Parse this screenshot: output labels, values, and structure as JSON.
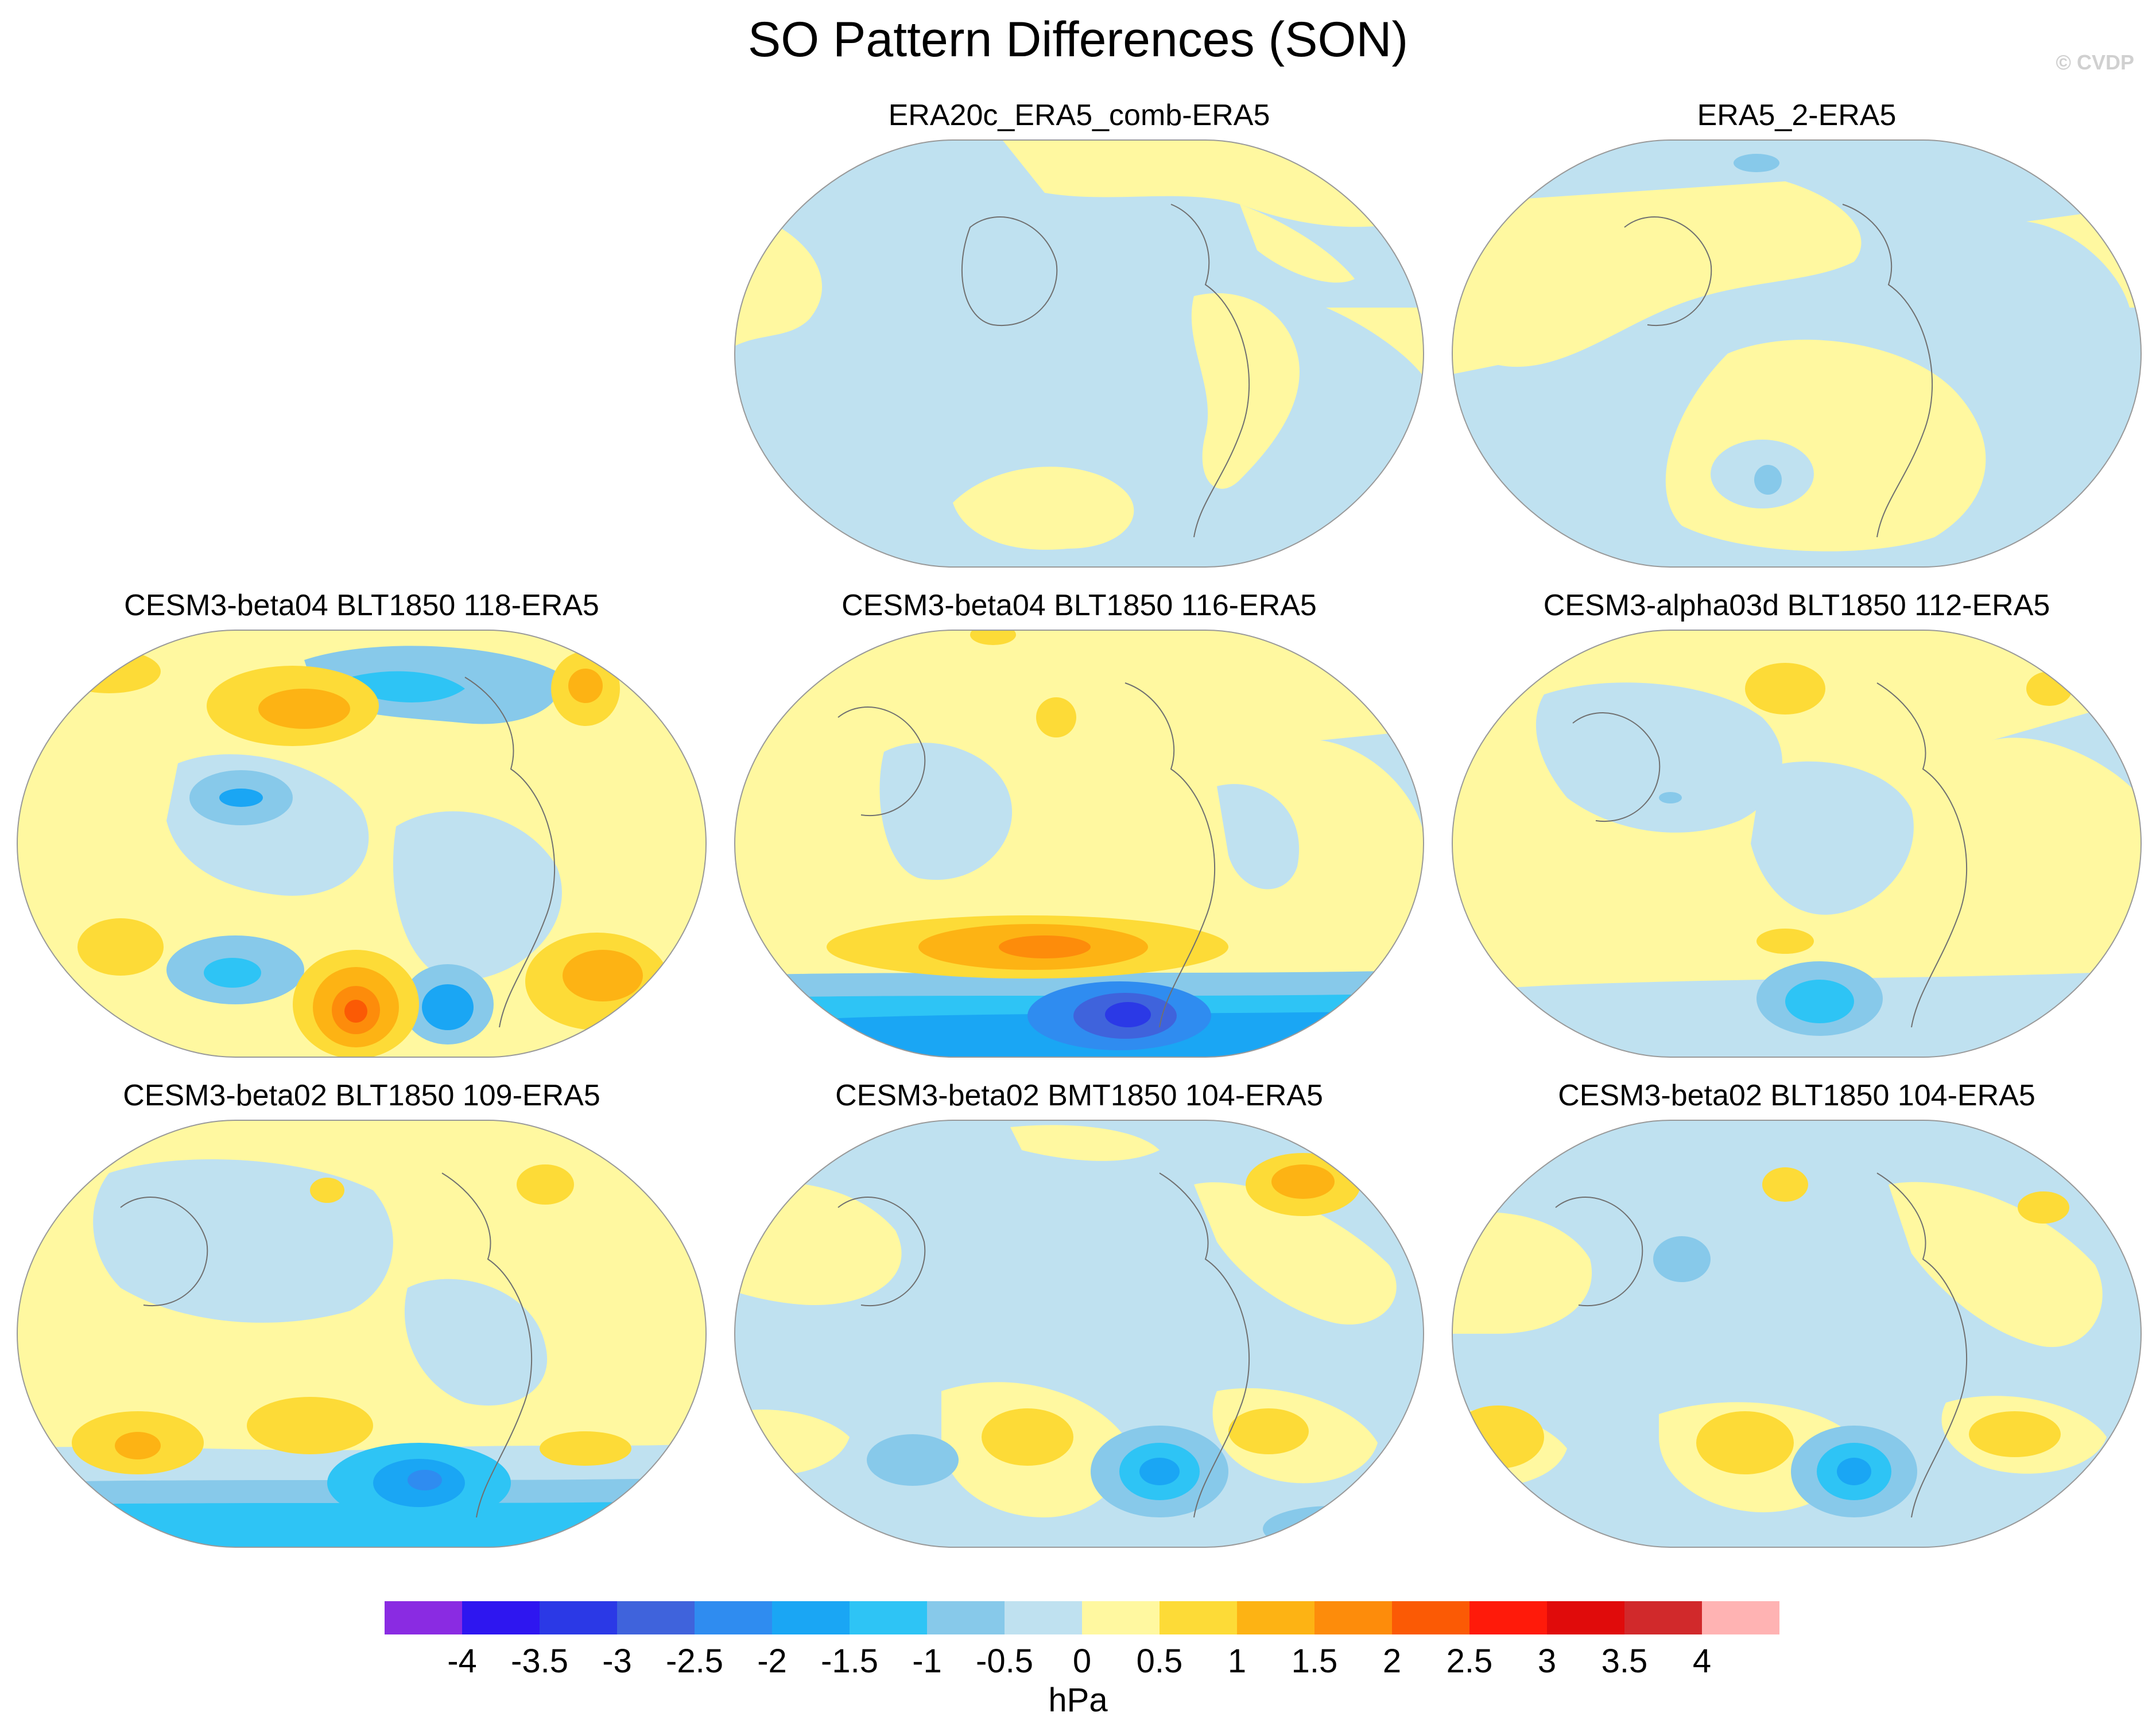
{
  "figure": {
    "title": "SO Pattern Differences (SON)",
    "copyright": "© CVDP"
  },
  "colors": {
    "ocean_neg": "#bfe1f0",
    "pos_light": "#fff8a0",
    "coast": "#707070"
  },
  "panels": [
    {
      "title": "ERA20c_ERA5_comb-ERA5"
    },
    {
      "title": "ERA5_2-ERA5"
    },
    {
      "title": "CESM3-beta04 BLT1850 118-ERA5"
    },
    {
      "title": "CESM3-beta04 BLT1850 116-ERA5"
    },
    {
      "title": "CESM3-alpha03d BLT1850 112-ERA5"
    },
    {
      "title": "CESM3-beta02 BLT1850 109-ERA5"
    },
    {
      "title": "CESM3-beta02 BMT1850 104-ERA5"
    },
    {
      "title": "CESM3-beta02 BLT1850 104-ERA5"
    }
  ],
  "colorbar": {
    "unit": "hPa",
    "levels": [
      "-4",
      "-3.5",
      "-3",
      "-2.5",
      "-2",
      "-1.5",
      "-1",
      "-0.5",
      "0",
      "0.5",
      "1",
      "1.5",
      "2",
      "2.5",
      "3",
      "3.5",
      "4"
    ],
    "colors": [
      "#8a2be2",
      "#2e16f0",
      "#2b39e6",
      "#3f63dc",
      "#2f8cf0",
      "#1aa6f4",
      "#2ec4f5",
      "#87c9ea",
      "#bfe1f0",
      "#fff8a0",
      "#fddb37",
      "#fdb314",
      "#fd8c0b",
      "#fb5a05",
      "#ff1a0a",
      "#e00b0b",
      "#d1292b",
      "#ffb3b3"
    ]
  }
}
